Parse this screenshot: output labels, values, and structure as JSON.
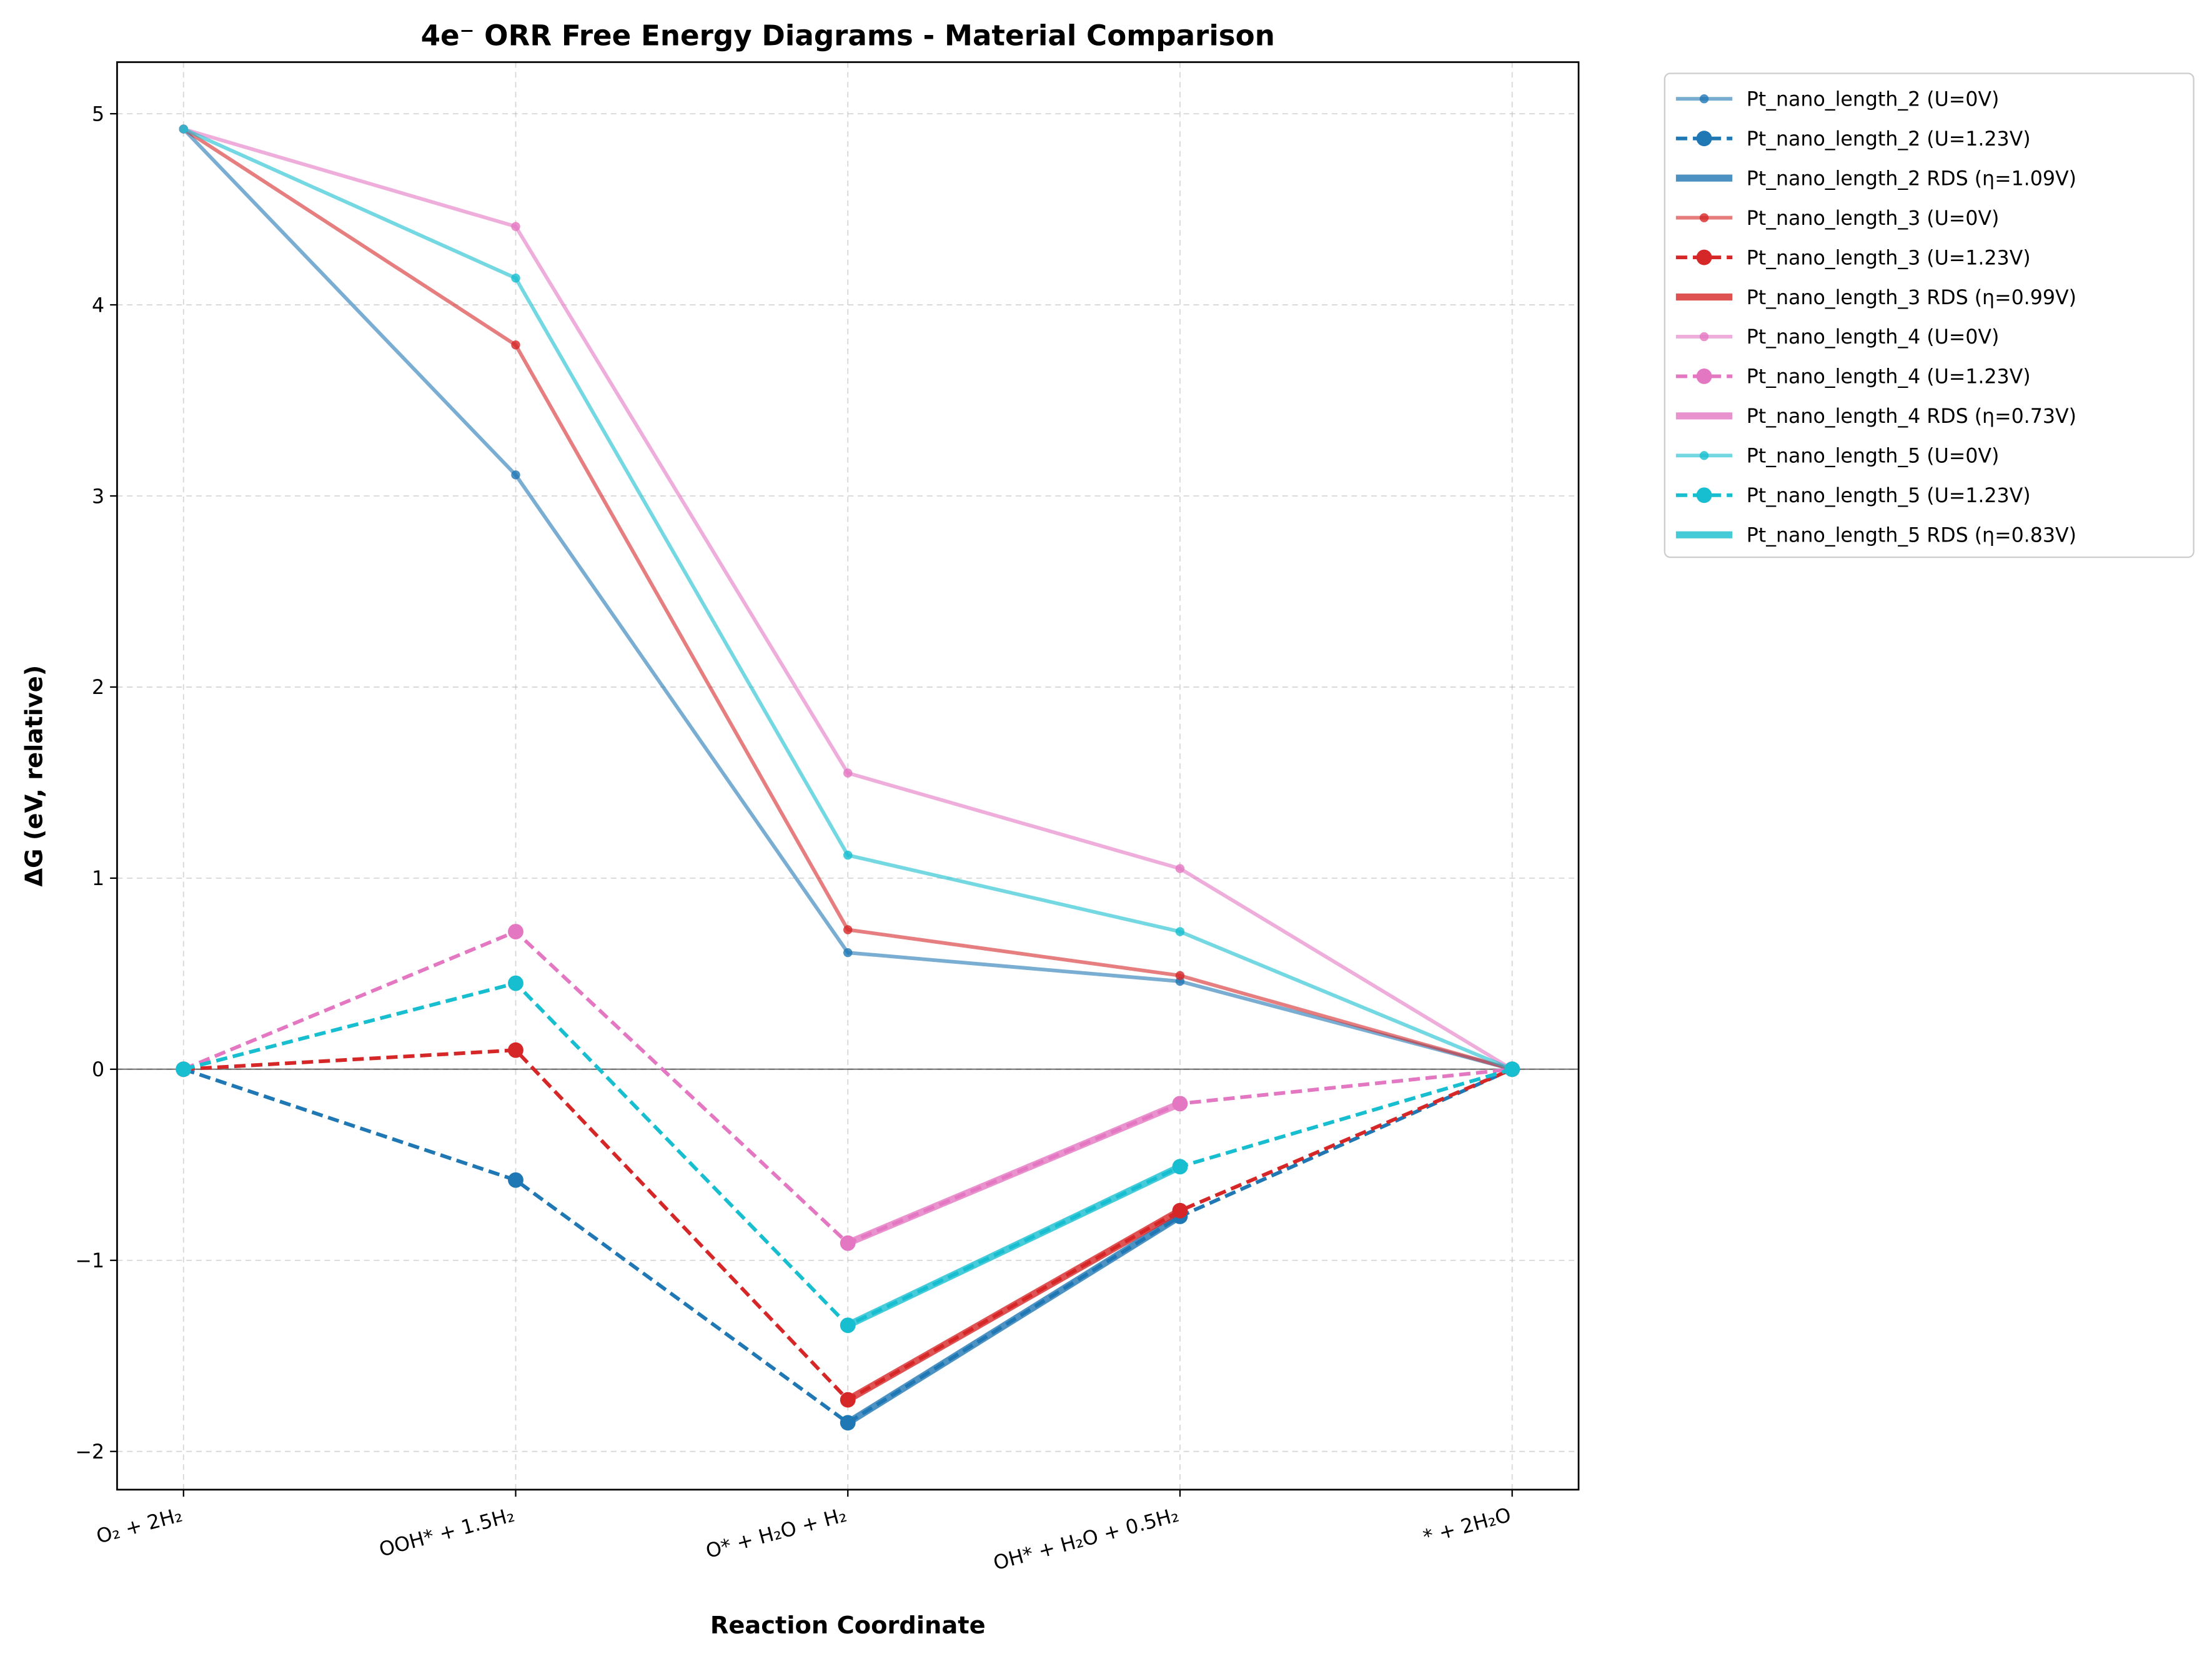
{
  "chart_data": {
    "type": "line",
    "title": "4e⁻ ORR Free Energy Diagrams - Material Comparison",
    "x_label": "Reaction Coordinate",
    "y_label": "ΔG (eV, relative)",
    "categories": [
      "O₂ + 2H₂",
      "OOH* + 1.5H₂",
      "O* + H₂O + H₂",
      "OH* + H₂O + 0.5H₂",
      "* + 2H₂O"
    ],
    "xlim": [
      -0.2,
      4.2
    ],
    "ylim": [
      -2.2,
      5.27
    ],
    "yticks": [
      {
        "value": -2,
        "label": "−2"
      },
      {
        "value": -1,
        "label": "−1"
      },
      0,
      1,
      2,
      3,
      4,
      5
    ],
    "grid": true,
    "reference_line": 0,
    "legend": "outside right",
    "series": [
      {
        "name": "Pt_nano_length_2 (U=0V)",
        "color": "#1f77b4",
        "style": "solid",
        "values": [
          4.92,
          3.11,
          0.61,
          0.46,
          0
        ]
      },
      {
        "name": "Pt_nano_length_2 (U=1.23V)",
        "color": "#1f77b4",
        "style": "dashed",
        "values": [
          0,
          -0.58,
          -1.85,
          -0.77,
          0
        ]
      },
      {
        "name": "Pt_nano_length_2 RDS (η=1.09V)",
        "color": "#1f77b4",
        "style": "rds",
        "values": [
          null,
          null,
          -1.85,
          -0.77,
          null
        ]
      },
      {
        "name": "Pt_nano_length_3 (U=0V)",
        "color": "#d62728",
        "style": "solid",
        "values": [
          4.92,
          3.79,
          0.73,
          0.49,
          0
        ]
      },
      {
        "name": "Pt_nano_length_3 (U=1.23V)",
        "color": "#d62728",
        "style": "dashed",
        "values": [
          0,
          0.1,
          -1.73,
          -0.74,
          0
        ]
      },
      {
        "name": "Pt_nano_length_3 RDS (η=0.99V)",
        "color": "#d62728",
        "style": "rds",
        "values": [
          null,
          null,
          -1.73,
          -0.74,
          null
        ]
      },
      {
        "name": "Pt_nano_length_4 (U=0V)",
        "color": "#e377c2",
        "style": "solid",
        "values": [
          4.92,
          4.41,
          1.55,
          1.05,
          0
        ]
      },
      {
        "name": "Pt_nano_length_4 (U=1.23V)",
        "color": "#e377c2",
        "style": "dashed",
        "values": [
          0,
          0.72,
          -0.91,
          -0.18,
          0
        ]
      },
      {
        "name": "Pt_nano_length_4 RDS (η=0.73V)",
        "color": "#e377c2",
        "style": "rds",
        "values": [
          null,
          null,
          -0.91,
          -0.18,
          null
        ]
      },
      {
        "name": "Pt_nano_length_5 (U=0V)",
        "color": "#17becf",
        "style": "solid",
        "values": [
          4.92,
          4.14,
          1.12,
          0.72,
          0
        ]
      },
      {
        "name": "Pt_nano_length_5 (U=1.23V)",
        "color": "#17becf",
        "style": "dashed",
        "values": [
          0,
          0.45,
          -1.34,
          -0.51,
          0
        ]
      },
      {
        "name": "Pt_nano_length_5 RDS (η=0.83V)",
        "color": "#17becf",
        "style": "rds",
        "values": [
          null,
          null,
          -1.34,
          -0.51,
          null
        ]
      }
    ]
  }
}
